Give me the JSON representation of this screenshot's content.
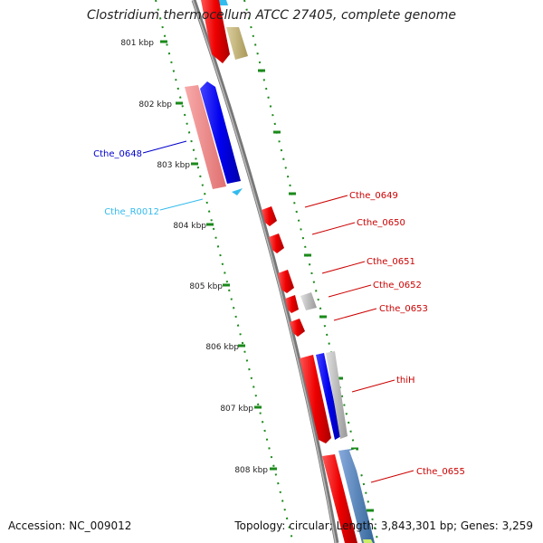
{
  "title": "Clostridium thermocellum ATCC 27405, complete genome",
  "accession_label": "Accession:",
  "accession": "NC_009012",
  "topology_label": "Topology:",
  "topology": "circular",
  "length_label": "Length:",
  "length": "3,843,301 bp",
  "genes_label": "Genes:",
  "genes": "3,259",
  "ticks": [
    "801 kbp",
    "802 kbp",
    "803 kbp",
    "804 kbp",
    "805 kbp",
    "806 kbp",
    "807 kbp",
    "808 kbp"
  ],
  "features": [
    {
      "label": "Cthe_0648",
      "color": "#0000cc"
    },
    {
      "label": "Cthe_R0012",
      "color": "#33bbee"
    },
    {
      "label": "Cthe_0649",
      "color": "#cc0000"
    },
    {
      "label": "Cthe_0650",
      "color": "#cc0000"
    },
    {
      "label": "Cthe_0651",
      "color": "#cc0000"
    },
    {
      "label": "Cthe_0652",
      "color": "#cc0000"
    },
    {
      "label": "Cthe_0653",
      "color": "#cc0000"
    },
    {
      "label": "thiH",
      "color": "#cc0000"
    },
    {
      "label": "Cthe_0655",
      "color": "#cc0000"
    }
  ],
  "colors": {
    "backbone": "#888888",
    "tick_mark": "#1a8a1a",
    "gene_red": "#ee0000",
    "gene_pink": "#f08888",
    "gene_blue": "#0000ee",
    "gene_olive": "#c8b878",
    "gene_grey": "#bbbbbb",
    "gene_steel": "#5588bb",
    "rna_cyan": "#33bbee"
  }
}
